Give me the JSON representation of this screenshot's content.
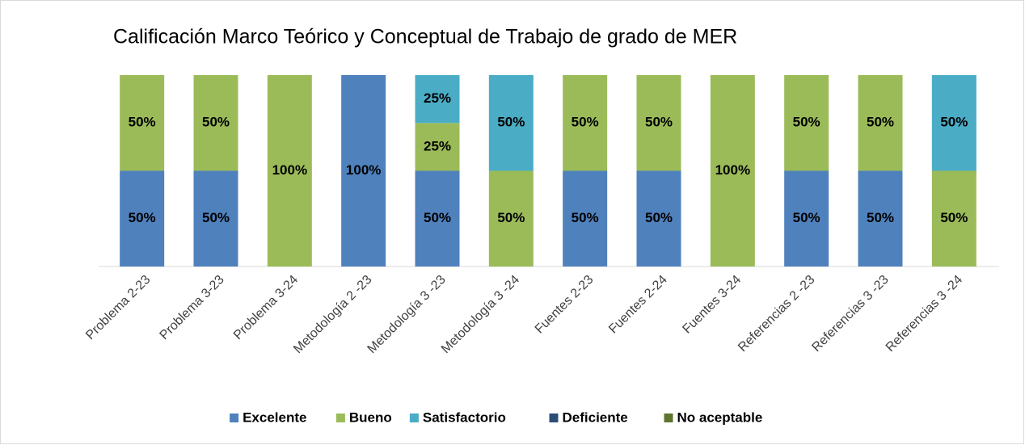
{
  "chart_data": {
    "type": "stacked_bar",
    "title": "Calificación Marco Teórico y Conceptual de Trabajo de grado de MER",
    "categories": [
      "Problema 2-23",
      "Problema 3-23",
      "Problema 3-24",
      "Metodología 2 -23",
      "Metodología 3 -23",
      "Metodología 3 -24",
      "Fuentes 2-23",
      "Fuentes 2-24",
      "Fuentes 3-24",
      "Referencias 2 -23",
      "Referencias 3 -23",
      "Referencias 3 -24"
    ],
    "series": [
      {
        "name": "Excelente",
        "color": "#4f81bd",
        "values": [
          50,
          50,
          0,
          100,
          50,
          0,
          50,
          50,
          0,
          50,
          50,
          0
        ],
        "value_labels": [
          "50%",
          "50%",
          null,
          "100%",
          "50%",
          null,
          "50%",
          "50%",
          null,
          "50%",
          "50%",
          null
        ]
      },
      {
        "name": "Bueno",
        "color": "#9bbb59",
        "values": [
          50,
          50,
          100,
          0,
          25,
          50,
          50,
          50,
          100,
          50,
          50,
          50
        ],
        "value_labels": [
          "50%",
          "50%",
          "100%",
          null,
          "25%",
          "50%",
          "50%",
          "50%",
          "100%",
          "50%",
          "50%",
          "50%"
        ]
      },
      {
        "name": "Satisfactorio",
        "color": "#4bacc6",
        "values": [
          0,
          0,
          0,
          0,
          25,
          50,
          0,
          0,
          0,
          0,
          0,
          50
        ],
        "value_labels": [
          null,
          null,
          null,
          null,
          "25%",
          "50%",
          null,
          null,
          null,
          null,
          null,
          "50%"
        ]
      },
      {
        "name": "Deficiente",
        "color": "#2c4d75",
        "values": [
          0,
          0,
          0,
          0,
          0,
          0,
          0,
          0,
          0,
          0,
          0,
          0
        ]
      },
      {
        "name": "No aceptable",
        "color": "#5f7530",
        "values": [
          0,
          0,
          0,
          0,
          0,
          0,
          0,
          0,
          0,
          0,
          0,
          0
        ]
      }
    ],
    "ylim": [
      0,
      100
    ],
    "legend": "bottom"
  }
}
